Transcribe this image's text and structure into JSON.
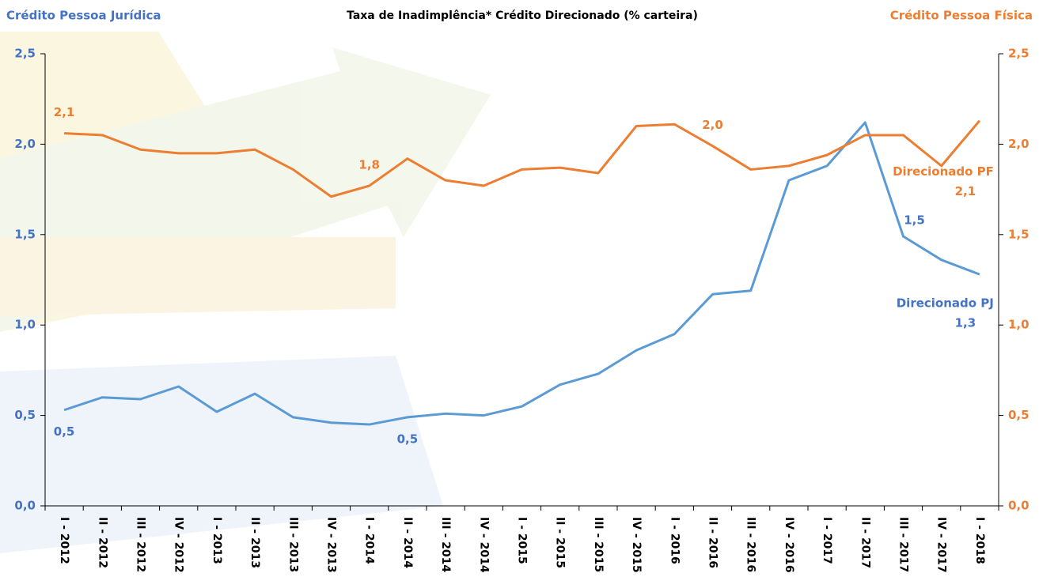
{
  "chart_data": {
    "type": "line",
    "title": "Taxa de Inadimplência*  Crédito Direcionado (% carteira)",
    "y_label": "Crédito Pessoa Jurídica",
    "y2_label": "Crédito Pessoa Física",
    "categories": [
      "I - 2012",
      "II - 2012",
      "III - 2012",
      "IV - 2012",
      "I - 2013",
      "II - 2013",
      "III - 2013",
      "IV - 2013",
      "I - 2014",
      "II - 2014",
      "III - 2014",
      "IV - 2014",
      "I - 2015",
      "II - 2015",
      "III - 2015",
      "IV - 2015",
      "I - 2016",
      "II - 2016",
      "III - 2016",
      "IV - 2016",
      "I - 2017",
      "II - 2017",
      "III - 2017",
      "IV - 2017",
      "I - 2018"
    ],
    "series": [
      {
        "name": "Direcionado PJ",
        "color": "#5b9bd5",
        "label_color": "#4472c4",
        "axis": "y",
        "values": [
          0.53,
          0.6,
          0.59,
          0.66,
          0.52,
          0.62,
          0.49,
          0.46,
          0.45,
          0.49,
          0.51,
          0.5,
          0.55,
          0.67,
          0.73,
          0.86,
          0.95,
          1.17,
          1.19,
          1.8,
          1.88,
          2.12,
          1.49,
          1.36,
          1.28
        ],
        "value_labels": [
          "0,5",
          null,
          null,
          null,
          null,
          null,
          null,
          null,
          null,
          "0,5",
          null,
          null,
          null,
          null,
          null,
          null,
          null,
          null,
          null,
          null,
          null,
          null,
          "1,5",
          null,
          "1,3"
        ]
      },
      {
        "name": "Direcionado PF",
        "color": "#ed7d31",
        "label_color": "#ed7d31",
        "axis": "y2",
        "values": [
          2.06,
          2.05,
          1.97,
          1.95,
          1.95,
          1.97,
          1.86,
          1.71,
          1.77,
          1.92,
          1.8,
          1.77,
          1.86,
          1.87,
          1.84,
          2.1,
          2.11,
          1.99,
          1.86,
          1.88,
          1.94,
          2.05,
          2.05,
          1.88,
          2.13
        ],
        "value_labels": [
          "2,1",
          null,
          null,
          null,
          null,
          null,
          null,
          null,
          "1,8",
          null,
          null,
          null,
          null,
          null,
          null,
          null,
          null,
          "2,0",
          null,
          null,
          null,
          null,
          null,
          null,
          "2,1"
        ]
      }
    ],
    "ylim": [
      0,
      2.5
    ],
    "yticks": [
      {
        "value": 0,
        "label": "0,0"
      },
      {
        "value": 0.5,
        "label": "0,5"
      },
      {
        "value": 1,
        "label": "1,0"
      },
      {
        "value": 1.5,
        "label": "1,5"
      },
      {
        "value": 2,
        "label": "2,0"
      },
      {
        "value": 2.5,
        "label": "2,5"
      }
    ],
    "y2lim": [
      0,
      2.5
    ],
    "y2ticks": [
      {
        "value": 0,
        "label": "0,0"
      },
      {
        "value": 0.5,
        "label": "0,5"
      },
      {
        "value": 1,
        "label": "1,0"
      },
      {
        "value": 1.5,
        "label": "1,5"
      },
      {
        "value": 2,
        "label": "2,0"
      },
      {
        "value": 2.5,
        "label": "2,5"
      }
    ],
    "grid": false
  }
}
